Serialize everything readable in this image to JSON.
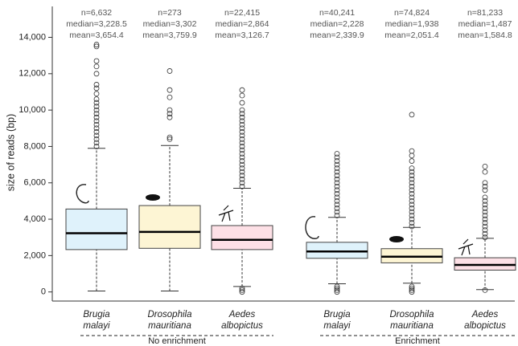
{
  "chart_data": {
    "type": "box",
    "y_label": "size of reads (bp)",
    "ylim": [
      -500,
      15700
    ],
    "yticks": [
      0,
      {
        "value": 2000,
        "label": "2,000"
      },
      {
        "value": 4000,
        "label": "4,000"
      },
      {
        "value": 6000,
        "label": "6,000"
      },
      {
        "value": 8000,
        "label": "8,000"
      },
      {
        "value": 10000,
        "label": "10,000"
      },
      {
        "value": 12000,
        "label": "12,000"
      },
      {
        "value": 14000,
        "label": "14,000"
      }
    ],
    "categories": [
      "Brugia malayi",
      "Drosophila mauritiana",
      "Aedes albopictus",
      "Brugia malayi",
      "Drosophila mauritiana",
      "Aedes albopictus"
    ],
    "groups": [
      "No enrichment",
      "Enrichment"
    ],
    "boxes": [
      {
        "color": "#dff2fb",
        "whislo": 50,
        "q1": 2330,
        "med": 3228.5,
        "q3": 4560,
        "whishi": 7900,
        "fliers": [
          8000,
          8200,
          8400,
          8600,
          8800,
          9000,
          9200,
          9400,
          9600,
          9800,
          10000,
          10200,
          10400,
          10600,
          10900,
          11200,
          11400,
          12000,
          12400,
          12700,
          13500,
          13600
        ],
        "stats": [
          "n=6,632",
          "median=3,228.5",
          "mean=3,654.4"
        ]
      },
      {
        "color": "#fdf5d4",
        "whislo": 50,
        "q1": 2400,
        "med": 3302,
        "q3": 4750,
        "whishi": 8050,
        "fliers": [
          8400,
          8500,
          9600,
          9800,
          10000,
          10700,
          11100,
          12150
        ],
        "stats": [
          "n=273",
          "median=3,302",
          "mean=3,759.9"
        ]
      },
      {
        "color": "#fde0e6",
        "whislo": 300,
        "q1": 2330,
        "med": 2864,
        "q3": 3650,
        "whishi": 5700,
        "fliers": [
          0,
          100,
          200,
          5800,
          6000,
          6200,
          6400,
          6600,
          6800,
          7000,
          7200,
          7400,
          7600,
          7800,
          8000,
          8200,
          8400,
          8600,
          8800,
          9000,
          9200,
          9400,
          9600,
          9800,
          10000,
          10400,
          10800,
          11100
        ],
        "stats": [
          "n=22,415",
          "median=2,864",
          "mean=3,126.7"
        ]
      },
      {
        "color": "#dff2fb",
        "whislo": 450,
        "q1": 1850,
        "med": 2228,
        "q3": 2730,
        "whishi": 4100,
        "fliers": [
          0,
          100,
          200,
          300,
          4200,
          4400,
          4600,
          4800,
          5000,
          5200,
          5400,
          5600,
          5800,
          6000,
          6200,
          6400,
          6600,
          6800,
          7000,
          7200,
          7400,
          7600
        ],
        "stats": [
          "n=40,241",
          "median=2,228",
          "mean=2,339.9"
        ]
      },
      {
        "color": "#fdf5d4",
        "whislo": 480,
        "q1": 1600,
        "med": 1938,
        "q3": 2380,
        "whishi": 3550,
        "fliers": [
          0,
          100,
          200,
          300,
          3600,
          3800,
          4000,
          4200,
          4400,
          4600,
          4800,
          5000,
          5200,
          5400,
          5600,
          5800,
          6000,
          6200,
          6400,
          6600,
          6800,
          7200,
          7500,
          7750,
          9750
        ],
        "stats": [
          "n=74,824",
          "median=1,938",
          "mean=2,051.4"
        ]
      },
      {
        "color": "#fde0e6",
        "whislo": 130,
        "q1": 1200,
        "med": 1487,
        "q3": 1880,
        "whishi": 2950,
        "fliers": [
          100,
          3000,
          3200,
          3400,
          3600,
          3800,
          4000,
          4200,
          4400,
          4600,
          4800,
          5000,
          5200,
          5600,
          5800,
          6000,
          6600,
          6900
        ],
        "stats": [
          "n=81,233",
          "median=1,487",
          "mean=1,584.8"
        ]
      }
    ]
  }
}
